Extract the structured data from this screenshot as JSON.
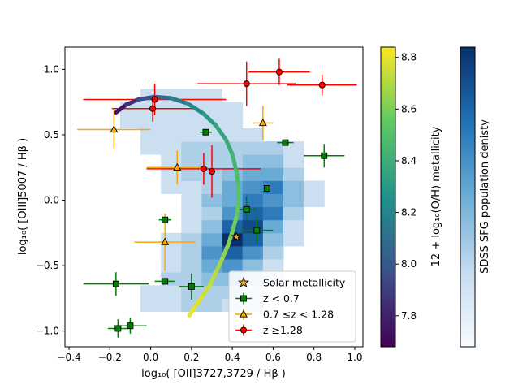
{
  "chart_data": {
    "type": "scatter",
    "xlabel": "log₁₀( [OII]3727,3729 / Hβ )",
    "ylabel": "log₁₀( [OIII]5007 / Hβ )",
    "xlim": [
      -0.42,
      1.04
    ],
    "ylim": [
      -1.12,
      1.17
    ],
    "x_ticks": [
      -0.4,
      -0.2,
      0.0,
      0.2,
      0.4,
      0.6,
      0.8,
      1.0
    ],
    "x_tick_labels": [
      "−0.4",
      "−0.2",
      "0.0",
      "0.2",
      "0.4",
      "0.6",
      "0.8",
      "1.0"
    ],
    "y_ticks": [
      1.0,
      0.5,
      0.0,
      -0.5,
      -1.0
    ],
    "y_tick_labels": [
      "1.0",
      "0.5",
      "0.0",
      "−0.5",
      "−1.0"
    ],
    "colorbars": [
      {
        "label": "12 + log₁₀(O/H) metallicity",
        "range": [
          7.68,
          8.84
        ],
        "ticks": [
          7.8,
          8.0,
          8.2,
          8.4,
          8.6,
          8.8
        ],
        "tick_labels": [
          "7.8",
          "8.0",
          "8.2",
          "8.4",
          "8.6",
          "8.8"
        ],
        "colormap": "viridis"
      },
      {
        "label": "SDSS SFG population denisty",
        "colormap": "Blues",
        "ticks": []
      }
    ],
    "legend": {
      "placement": "lower-right",
      "entries": [
        {
          "label": "Solar metallicity",
          "marker": "star",
          "color": "#f5a623"
        },
        {
          "label": "z < 0.7",
          "marker": "square",
          "color": "#008000"
        },
        {
          "label": "0.7 ≤z < 1.28",
          "marker": "triangle",
          "color": "#ffa500"
        },
        {
          "label": "z ≥1.28",
          "marker": "circle",
          "color": "#ff0000"
        }
      ]
    },
    "series": [
      {
        "name": "z < 0.7",
        "marker": "square",
        "color": "#008000",
        "points": [
          {
            "x": 0.27,
            "y": 0.52,
            "xerr": 0.03,
            "yerr": 0.0
          },
          {
            "x": 0.66,
            "y": 0.44,
            "xerr": 0.04,
            "yerr": 0.0
          },
          {
            "x": 0.85,
            "y": 0.34,
            "xerr": 0.1,
            "yerr": 0.09
          },
          {
            "x": 0.57,
            "y": 0.09,
            "xerr": 0.0,
            "yerr": 0.0
          },
          {
            "x": 0.47,
            "y": -0.07,
            "xerr": 0.05,
            "yerr": 0.1
          },
          {
            "x": 0.52,
            "y": -0.23,
            "xerr": 0.08,
            "yerr": 0.1
          },
          {
            "x": 0.07,
            "y": -0.15,
            "xerr": 0.03,
            "yerr": 0.0
          },
          {
            "x": 0.07,
            "y": -0.62,
            "xerr": 0.05,
            "yerr": 0.0
          },
          {
            "x": 0.2,
            "y": -0.66,
            "xerr": 0.06,
            "yerr": 0.1
          },
          {
            "x": -0.17,
            "y": -0.64,
            "xerr": 0.16,
            "yerr": 0.09
          },
          {
            "x": -0.16,
            "y": -0.98,
            "xerr": 0.05,
            "yerr": 0.07
          },
          {
            "x": -0.1,
            "y": -0.96,
            "xerr": 0.08,
            "yerr": 0.06
          }
        ]
      },
      {
        "name": "0.7 ≤z < 1.28",
        "marker": "triangle",
        "color": "#ffa500",
        "points": [
          {
            "x": -0.18,
            "y": 0.54,
            "xerr": 0.18,
            "yerr": 0.15
          },
          {
            "x": 0.13,
            "y": 0.25,
            "xerr": 0.15,
            "yerr": 0.13
          },
          {
            "x": 0.55,
            "y": 0.59,
            "xerr": 0.05,
            "yerr": 0.13
          },
          {
            "x": 0.07,
            "y": -0.32,
            "xerr": 0.15,
            "yerr": 0.22
          }
        ]
      },
      {
        "name": "z ≥1.28",
        "marker": "circle",
        "color": "#ff0000",
        "points": [
          {
            "x": 0.47,
            "y": 0.89,
            "xerr": 0.24,
            "yerr": 0.17
          },
          {
            "x": 0.63,
            "y": 0.98,
            "xerr": 0.15,
            "yerr": 0.1
          },
          {
            "x": 0.84,
            "y": 0.88,
            "xerr": 0.17,
            "yerr": 0.08
          },
          {
            "x": 0.02,
            "y": 0.77,
            "xerr": 0.35,
            "yerr": 0.12
          },
          {
            "x": 0.01,
            "y": 0.7,
            "xerr": 0.2,
            "yerr": 0.1
          },
          {
            "x": 0.26,
            "y": 0.24,
            "xerr": 0.28,
            "yerr": 0.12
          },
          {
            "x": 0.3,
            "y": 0.22,
            "xerr": 0.0,
            "yerr": 0.2
          }
        ]
      },
      {
        "name": "Solar metallicity",
        "marker": "star",
        "color": "#f5a623",
        "points": [
          {
            "x": 0.42,
            "y": -0.28,
            "xerr": 0.0,
            "yerr": 0.0
          }
        ]
      }
    ],
    "metallicity_track": {
      "x": [
        -0.17,
        -0.12,
        -0.06,
        0.02,
        0.1,
        0.18,
        0.26,
        0.32,
        0.37,
        0.4,
        0.42,
        0.43,
        0.43,
        0.42,
        0.4,
        0.38,
        0.35,
        0.32,
        0.29,
        0.25,
        0.21,
        0.19
      ],
      "y": [
        0.67,
        0.73,
        0.77,
        0.79,
        0.78,
        0.74,
        0.66,
        0.57,
        0.46,
        0.35,
        0.22,
        0.1,
        -0.02,
        -0.13,
        -0.24,
        -0.34,
        -0.45,
        -0.55,
        -0.65,
        -0.74,
        -0.83,
        -0.88
      ],
      "z": [
        7.72,
        7.8,
        7.9,
        8.02,
        8.12,
        8.2,
        8.27,
        8.33,
        8.38,
        8.42,
        8.46,
        8.5,
        8.53,
        8.56,
        8.59,
        8.62,
        8.66,
        8.7,
        8.74,
        8.77,
        8.8,
        8.82
      ]
    },
    "density_grid": {
      "x_edges": [
        -0.15,
        -0.05,
        0.05,
        0.15,
        0.25,
        0.35,
        0.45,
        0.55,
        0.65,
        0.75,
        0.85
      ],
      "y_edges": [
        -0.85,
        -0.75,
        -0.65,
        -0.55,
        -0.45,
        -0.35,
        -0.25,
        -0.15,
        -0.05,
        0.05,
        0.15,
        0.25,
        0.35,
        0.45,
        0.55,
        0.65,
        0.75,
        0.85
      ],
      "counts": [
        [
          0,
          1,
          1,
          2,
          2,
          1,
          1,
          0,
          0,
          0
        ],
        [
          0,
          1,
          1,
          2,
          2,
          2,
          1,
          0,
          0,
          0
        ],
        [
          0,
          0,
          2,
          2,
          3,
          3,
          2,
          1,
          0,
          0
        ],
        [
          0,
          0,
          1,
          2,
          4,
          5,
          3,
          1,
          0,
          0
        ],
        [
          0,
          0,
          1,
          2,
          5,
          7,
          5,
          2,
          0,
          0
        ],
        [
          0,
          0,
          1,
          2,
          4,
          9,
          7,
          3,
          1,
          0
        ],
        [
          0,
          0,
          0,
          1,
          3,
          7,
          8,
          4,
          1,
          0
        ],
        [
          0,
          0,
          0,
          1,
          2,
          5,
          7,
          6,
          2,
          0
        ],
        [
          0,
          0,
          0,
          1,
          3,
          4,
          6,
          5,
          3,
          1
        ],
        [
          0,
          0,
          1,
          1,
          2,
          4,
          5,
          6,
          3,
          1
        ],
        [
          0,
          0,
          1,
          2,
          2,
          3,
          4,
          4,
          2,
          0
        ],
        [
          0,
          0,
          1,
          2,
          2,
          2,
          3,
          3,
          1,
          0
        ],
        [
          0,
          1,
          1,
          2,
          2,
          2,
          2,
          2,
          1,
          0
        ],
        [
          0,
          1,
          1,
          1,
          1,
          1,
          1,
          0,
          0,
          0
        ],
        [
          1,
          1,
          1,
          1,
          1,
          1,
          0,
          0,
          0,
          0
        ],
        [
          1,
          1,
          1,
          1,
          1,
          1,
          0,
          0,
          0,
          0
        ],
        [
          0,
          1,
          1,
          1,
          1,
          0,
          0,
          0,
          0,
          0
        ]
      ],
      "max": 9
    }
  }
}
